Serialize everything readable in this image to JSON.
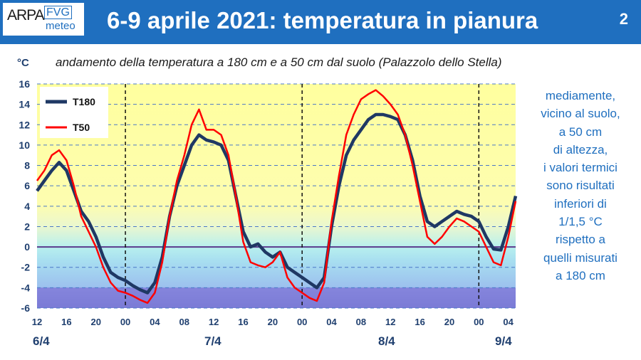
{
  "header": {
    "logo_arpa": "ARPA",
    "logo_fvg": "FVG",
    "logo_meteo": "meteo",
    "title": "6-9 aprile 2021: temperatura in pianura",
    "page_number": "2"
  },
  "unit": "°C",
  "subtitle": "andamento della temperatura  a 180 cm e a 50 cm dal suolo (Palazzolo dello Stella)",
  "note_lines": [
    "mediamente,",
    "vicino al suolo,",
    "a 50 cm",
    "di altezza,",
    "i valori termici",
    "sono risultati",
    "inferiori di",
    "1/1,5 °C",
    "rispetto a",
    "quelli misurati",
    "a 180 cm"
  ],
  "date_labels": [
    "6/4",
    "7/4",
    "8/4",
    "9/4"
  ],
  "colors": {
    "header": "#1f6fbf",
    "t180": "#1f3864",
    "t50": "#ff0000",
    "warm_band": "#ffff9e",
    "cold_band": "#8c8ce0"
  },
  "chart_data": {
    "type": "line",
    "title": "",
    "xlabel": "",
    "ylabel": "°C",
    "ylim": [
      -6,
      16
    ],
    "yticks": [
      -6,
      -4,
      -2,
      0,
      2,
      4,
      6,
      8,
      10,
      12,
      14,
      16
    ],
    "xlim": [
      12,
      77
    ],
    "xticks": [
      12,
      16,
      20,
      24,
      28,
      32,
      36,
      40,
      44,
      48,
      52,
      56,
      60,
      64,
      68,
      72,
      76
    ],
    "xtick_labels": [
      "12",
      "16",
      "20",
      "00",
      "04",
      "08",
      "12",
      "16",
      "20",
      "00",
      "04",
      "08",
      "12",
      "16",
      "20",
      "00",
      "04"
    ],
    "midnights": [
      24,
      48,
      72
    ],
    "grid": true,
    "legend": "top-left",
    "series": [
      {
        "name": "T180",
        "x": [
          12,
          13,
          14,
          15,
          16,
          17,
          18,
          19,
          20,
          21,
          22,
          23,
          24,
          25,
          26,
          27,
          28,
          29,
          30,
          31,
          32,
          33,
          34,
          35,
          36,
          37,
          38,
          39,
          40,
          41,
          42,
          43,
          44,
          45,
          46,
          47,
          48,
          49,
          50,
          51,
          52,
          53,
          54,
          55,
          56,
          57,
          58,
          59,
          60,
          61,
          62,
          63,
          64,
          65,
          66,
          67,
          68,
          69,
          70,
          71,
          72,
          73,
          74,
          75,
          76,
          77
        ],
        "values": [
          5.5,
          6.5,
          7.5,
          8.3,
          7.5,
          5.5,
          3.5,
          2.5,
          1.0,
          -1.0,
          -2.5,
          -3.0,
          -3.3,
          -3.8,
          -4.2,
          -4.5,
          -3.5,
          -1.0,
          3.0,
          6.0,
          8.0,
          10.0,
          11.0,
          10.5,
          10.3,
          10.0,
          8.5,
          5.0,
          1.5,
          0.0,
          0.3,
          -0.5,
          -1.0,
          -0.5,
          -2.0,
          -2.5,
          -3.0,
          -3.5,
          -4.0,
          -3.0,
          2.0,
          6.0,
          9.0,
          10.5,
          11.5,
          12.5,
          13.0,
          13.0,
          12.8,
          12.5,
          11.0,
          8.5,
          5.0,
          2.5,
          2.0,
          2.5,
          3.0,
          3.5,
          3.2,
          3.0,
          2.5,
          1.0,
          -0.2,
          -0.3,
          2.0,
          5.0
        ]
      },
      {
        "name": "T50",
        "x": [
          12,
          13,
          14,
          15,
          16,
          17,
          18,
          19,
          20,
          21,
          22,
          23,
          24,
          25,
          26,
          27,
          28,
          29,
          30,
          31,
          32,
          33,
          34,
          35,
          36,
          37,
          38,
          39,
          40,
          41,
          42,
          43,
          44,
          45,
          46,
          47,
          48,
          49,
          50,
          51,
          52,
          53,
          54,
          55,
          56,
          57,
          58,
          59,
          60,
          61,
          62,
          63,
          64,
          65,
          66,
          67,
          68,
          69,
          70,
          71,
          72,
          73,
          74,
          75,
          76,
          77
        ],
        "values": [
          6.5,
          7.5,
          9.0,
          9.5,
          8.5,
          6.0,
          3.0,
          1.5,
          0.0,
          -2.0,
          -3.5,
          -4.3,
          -4.5,
          -4.8,
          -5.2,
          -5.5,
          -4.5,
          -1.5,
          3.0,
          6.5,
          9.0,
          12.0,
          13.5,
          11.5,
          11.5,
          11.0,
          9.0,
          5.0,
          0.5,
          -1.5,
          -1.8,
          -2.0,
          -1.5,
          -0.5,
          -3.0,
          -4.0,
          -4.5,
          -5.0,
          -5.3,
          -3.5,
          2.5,
          7.0,
          11.0,
          13.0,
          14.5,
          15.0,
          15.4,
          14.8,
          14.0,
          13.0,
          11.0,
          8.0,
          4.5,
          1.0,
          0.3,
          1.0,
          2.0,
          2.8,
          2.5,
          2.0,
          1.5,
          0.0,
          -1.5,
          -1.8,
          1.0,
          4.5
        ]
      }
    ]
  }
}
